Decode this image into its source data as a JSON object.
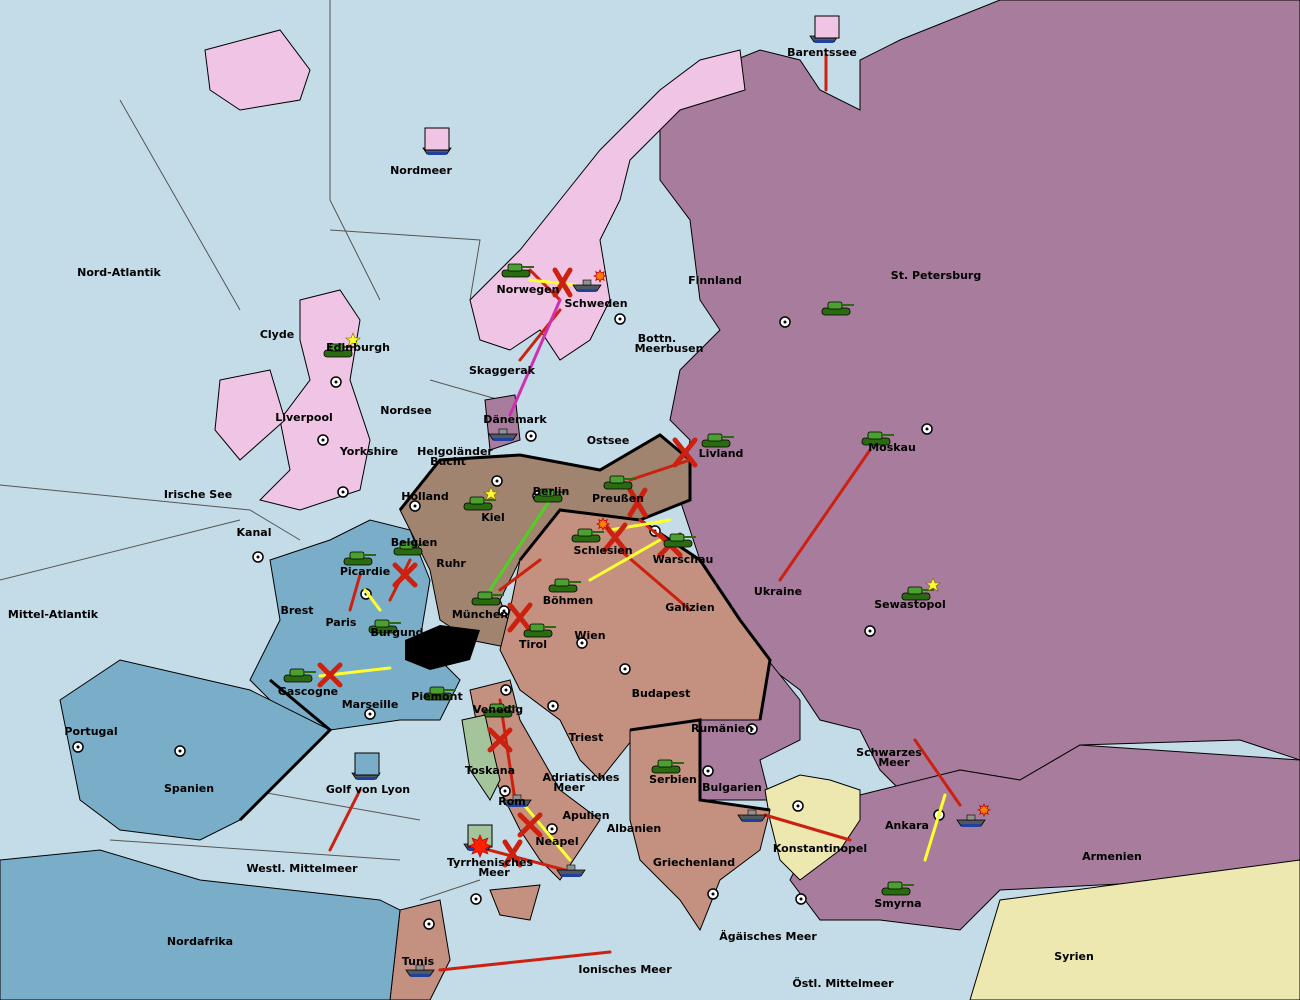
{
  "colors": {
    "sea": "#c4dce8",
    "england": "#f0c4e4",
    "russia_turkey": "#a87c9c",
    "germany": "#a08470",
    "austria": "#c4907f",
    "france": "#7aaec8",
    "italy": "#a4c49c",
    "neutral": "#ece8b0",
    "move": "#cc2010",
    "support": "#ffff30",
    "convoy": "#d030b0",
    "german_move": "#50d020"
  },
  "regions": [
    "Barentssee",
    "Nordmeer",
    "Nord-Atlantik",
    "Norwegen",
    "Schweden",
    "Finnland",
    "St. Petersburg",
    "Clyde",
    "Edinburgh",
    "Bottn.",
    "Meerbusen",
    "Skaggerak",
    "Liverpool",
    "Nordsee",
    "Dänemark",
    "Ostsee",
    "Yorkshire",
    "Helgoländer",
    "Bucht",
    "Livland",
    "Moskau",
    "Irische See",
    "Holland",
    "Kiel",
    "Berlin",
    "Preußen",
    "Kanal",
    "Belgien",
    "Schlesien",
    "Warschau",
    "Ruhr",
    "Picardie",
    "Ukraine",
    "Böhmen",
    "Brest",
    "Galizien",
    "Sewastopol",
    "Mittel-Atlantik",
    "Paris",
    "München",
    "Burgund",
    "Tirol",
    "Wien",
    "Gascogne",
    "Piemont",
    "Budapest",
    "Marseille",
    "Venedig",
    "Portugal",
    "Rumänien",
    "Triest",
    "Schwarzes",
    "Meer",
    "Toskana",
    "Adriatisches",
    "Meer",
    "Serbien",
    "Spanien",
    "Golf von Lyon",
    "Bulgarien",
    "Rom",
    "Apulien",
    "Ankara",
    "Albanien",
    "Neapel",
    "Konstantinopel",
    "Armenien",
    "Tyrrhenisches",
    "Meer",
    "Griechenland",
    "Westl. Mittelmeer",
    "Smyrna",
    "Nordafrika",
    "Ägäisches Meer",
    "Syrien",
    "Tunis",
    "Ionisches Meer",
    "Östl. Mittelmeer"
  ],
  "unit_icons": {
    "army": "tank-icon",
    "fleet": "ship-icon",
    "supply_center": "supply-center-icon",
    "dislodged": "explosion-icon",
    "build": "star-icon"
  }
}
